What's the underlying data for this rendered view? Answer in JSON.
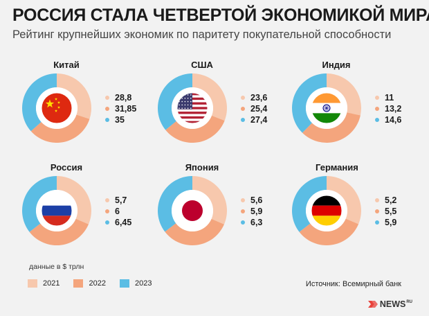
{
  "header": {
    "title": "РОССИЯ СТАЛА ЧЕТВЕРТОЙ ЭКОНОМИКОЙ МИРА",
    "subtitle": "Рейтинг крупнейших экономик по паритету покупательной способности"
  },
  "chart_data": {
    "type": "pie",
    "donut": true,
    "unit_note": "данные в $ трлн",
    "years": [
      "2021",
      "2022",
      "2023"
    ],
    "colors": [
      "#f7c8ad",
      "#f4a57d",
      "#5bbde4"
    ],
    "countries": [
      {
        "name": "Китай",
        "flag": "china-flag",
        "values": [
          28.8,
          31.85,
          35
        ],
        "labels": [
          "28,8",
          "31,85",
          "35"
        ]
      },
      {
        "name": "США",
        "flag": "usa-flag",
        "values": [
          23.6,
          25.4,
          27.4
        ],
        "labels": [
          "23,6",
          "25,4",
          "27,4"
        ]
      },
      {
        "name": "Индия",
        "flag": "india-flag",
        "values": [
          11,
          13.2,
          14.6
        ],
        "labels": [
          "11",
          "13,2",
          "14,6"
        ]
      },
      {
        "name": "Россия",
        "flag": "russia-flag",
        "values": [
          5.7,
          6,
          6.45
        ],
        "labels": [
          "5,7",
          "6",
          "6,45"
        ]
      },
      {
        "name": "Япония",
        "flag": "japan-flag",
        "values": [
          5.6,
          5.9,
          6.3
        ],
        "labels": [
          "5,6",
          "5,9",
          "6,3"
        ]
      },
      {
        "name": "Германия",
        "flag": "germany-flag",
        "values": [
          5.2,
          5.5,
          5.9
        ],
        "labels": [
          "5,2",
          "5,5",
          "5,9"
        ]
      }
    ]
  },
  "footer": {
    "source": "Источник: Всемирный банк",
    "logo_text": "NEWS",
    "logo_sup": "RU"
  }
}
